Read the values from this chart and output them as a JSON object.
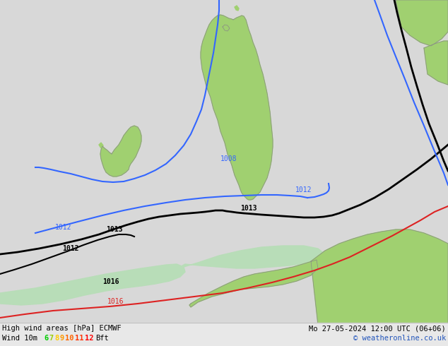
{
  "title_left": "High wind areas [hPa] ECMWF",
  "title_right": "Mo 27-05-2024 12:00 UTC (06+06)",
  "subtitle_left": "Wind 10m",
  "legend_numbers": [
    "6",
    "7",
    "8",
    "9",
    "10",
    "11",
    "12"
  ],
  "legend_colors": [
    "#00cc00",
    "#99cc00",
    "#ffcc00",
    "#ff9900",
    "#ff6600",
    "#ff3300",
    "#ff0000"
  ],
  "legend_suffix": "Bft",
  "copyright": "© weatheronline.co.uk",
  "bg_color": "#d8d8d8",
  "land_color": "#a0d070",
  "land_border_color": "#888888",
  "isobar_blue": "#3366ff",
  "isobar_black": "#000000",
  "isobar_red": "#dd2222",
  "sea_color": "#d0d8e0",
  "sea_green_color": "#b8ddb8",
  "bottom_bar_color": "#e8e8e8",
  "bottom_text_color": "#000000",
  "label_1008_blue": "1008",
  "label_1012_blue": "1012",
  "label_1013_black": "1013",
  "label_1012_black": "1012",
  "label_1013_black2": "1013",
  "label_1016_red": "1016",
  "label_1016_black": "1016"
}
